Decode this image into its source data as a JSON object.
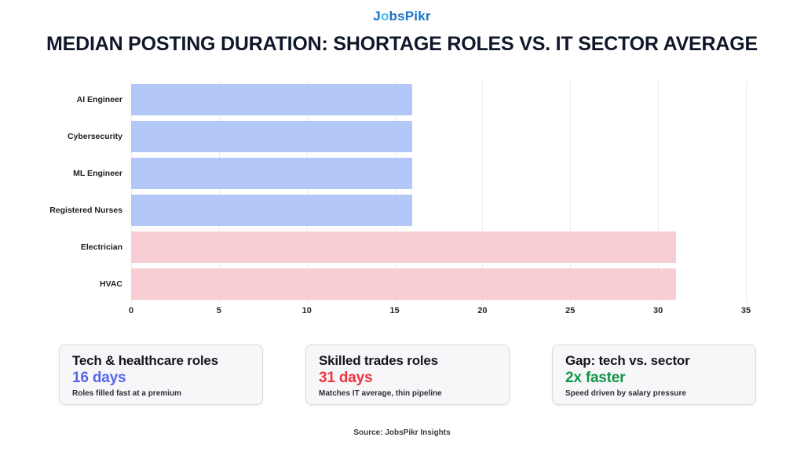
{
  "header": {
    "logo_j": "J",
    "logo_o": "o",
    "logo_rest": "bsPikr",
    "title": "MEDIAN POSTING DURATION: SHORTAGE ROLES VS. IT SECTOR AVERAGE"
  },
  "chart_data": {
    "type": "bar",
    "orientation": "horizontal",
    "title": "MEDIAN POSTING DURATION: SHORTAGE ROLES VS. IT SECTOR AVERAGE",
    "categories": [
      "AI Engineer",
      "Cybersecurity",
      "ML Engineer",
      "Registered Nurses",
      "Electrician",
      "HVAC"
    ],
    "values": [
      16,
      16,
      16,
      16,
      31,
      31
    ],
    "bar_colors": [
      "#b3c8f8",
      "#b3c8f8",
      "#b3c8f8",
      "#b3c8f8",
      "#f8cdd4",
      "#f8cdd4"
    ],
    "xlabel": "",
    "ylabel": "",
    "xlim": [
      0,
      35
    ],
    "xticks": [
      0,
      5,
      10,
      15,
      20,
      25,
      30,
      35
    ],
    "grid": true,
    "legend": false
  },
  "cards": [
    {
      "title": "Tech & healthcare roles",
      "value": "16 days",
      "value_color": "#5566e9",
      "subtitle": "Roles filled fast at a premium"
    },
    {
      "title": "Skilled trades roles",
      "value": "31 days",
      "value_color": "#ee3540",
      "subtitle": "Matches IT average, thin pipeline"
    },
    {
      "title": "Gap: tech vs. sector",
      "value": "2x faster",
      "value_color": "#12954a",
      "subtitle": "Speed driven by salary pressure"
    }
  ],
  "footer": {
    "source": "Source: JobsPikr Insights"
  }
}
